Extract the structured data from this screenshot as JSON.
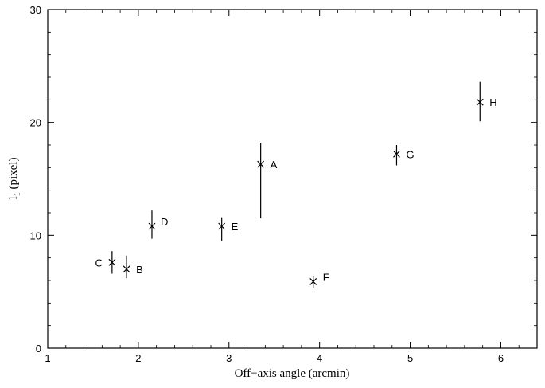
{
  "chart_data": {
    "type": "scatter",
    "title": "",
    "xlabel": "Off−axis angle (arcmin)",
    "ylabel": {
      "main": "l",
      "subscript": "1",
      "suffix": " (pixel)"
    },
    "xlim": [
      1,
      6.4
    ],
    "ylim": [
      0,
      30
    ],
    "xticks": [
      1,
      2,
      3,
      4,
      5,
      6
    ],
    "yticks": [
      0,
      10,
      20,
      30
    ],
    "xtick_labels": [
      "1",
      "2",
      "3",
      "4",
      "5",
      "6"
    ],
    "ytick_labels": [
      "0",
      "10",
      "20",
      "30"
    ],
    "grid": false,
    "points": [
      {
        "label": "A",
        "x": 3.35,
        "y": 16.3,
        "err_low": 11.5,
        "err_high": 18.2
      },
      {
        "label": "B",
        "x": 1.87,
        "y": 7.0,
        "err_low": 6.2,
        "err_high": 8.2
      },
      {
        "label": "C",
        "x": 1.71,
        "y": 7.6,
        "err_low": 6.6,
        "err_high": 8.6
      },
      {
        "label": "D",
        "x": 2.15,
        "y": 10.8,
        "err_low": 9.7,
        "err_high": 12.2
      },
      {
        "label": "E",
        "x": 2.92,
        "y": 10.8,
        "err_low": 9.5,
        "err_high": 11.6
      },
      {
        "label": "F",
        "x": 3.93,
        "y": 5.9,
        "err_low": 5.3,
        "err_high": 6.4
      },
      {
        "label": "G",
        "x": 4.85,
        "y": 17.2,
        "err_low": 16.2,
        "err_high": 18.0
      },
      {
        "label": "H",
        "x": 5.77,
        "y": 21.8,
        "err_low": 20.1,
        "err_high": 23.6
      }
    ]
  }
}
